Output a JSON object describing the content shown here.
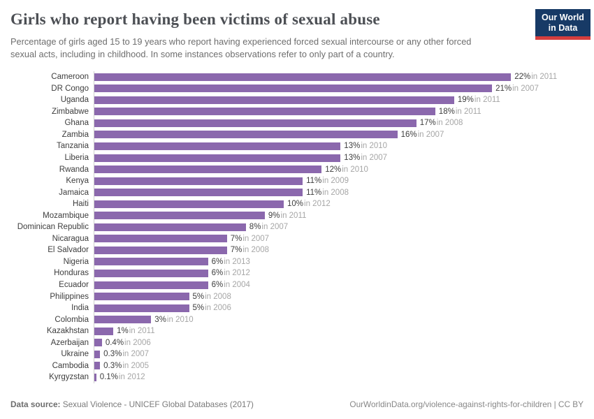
{
  "header": {
    "title": "Girls who report having been victims of sexual abuse",
    "subtitle": "Percentage of girls aged 15 to 19 years who report having experienced forced sexual intercourse or any other forced sexual acts, including in childhood. In some instances observations refer to only part of a country.",
    "logo": {
      "line1": "Our World",
      "line2": "in Data"
    }
  },
  "chart_data": {
    "type": "bar",
    "orientation": "horizontal",
    "value_unit": "%",
    "xlim": [
      0,
      22
    ],
    "grid": false,
    "legend": "none",
    "bar_color": "#8b68ad",
    "categories": [
      "Cameroon",
      "DR Congo",
      "Uganda",
      "Zimbabwe",
      "Ghana",
      "Zambia",
      "Tanzania",
      "Liberia",
      "Rwanda",
      "Kenya",
      "Jamaica",
      "Haiti",
      "Mozambique",
      "Dominican Republic",
      "Nicaragua",
      "El Salvador",
      "Nigeria",
      "Honduras",
      "Ecuador",
      "Philippines",
      "India",
      "Colombia",
      "Kazakhstan",
      "Azerbaijan",
      "Ukraine",
      "Cambodia",
      "Kyrgyzstan"
    ],
    "series": [
      {
        "country": "Cameroon",
        "value": 22,
        "value_label": "22%",
        "year": 2011,
        "year_label": "in 2011"
      },
      {
        "country": "DR Congo",
        "value": 21,
        "value_label": "21%",
        "year": 2007,
        "year_label": "in 2007"
      },
      {
        "country": "Uganda",
        "value": 19,
        "value_label": "19%",
        "year": 2011,
        "year_label": "in 2011"
      },
      {
        "country": "Zimbabwe",
        "value": 18,
        "value_label": "18%",
        "year": 2011,
        "year_label": "in 2011"
      },
      {
        "country": "Ghana",
        "value": 17,
        "value_label": "17%",
        "year": 2008,
        "year_label": "in 2008"
      },
      {
        "country": "Zambia",
        "value": 16,
        "value_label": "16%",
        "year": 2007,
        "year_label": "in 2007"
      },
      {
        "country": "Tanzania",
        "value": 13,
        "value_label": "13%",
        "year": 2010,
        "year_label": "in 2010"
      },
      {
        "country": "Liberia",
        "value": 13,
        "value_label": "13%",
        "year": 2007,
        "year_label": "in 2007"
      },
      {
        "country": "Rwanda",
        "value": 12,
        "value_label": "12%",
        "year": 2010,
        "year_label": "in 2010"
      },
      {
        "country": "Kenya",
        "value": 11,
        "value_label": "11%",
        "year": 2009,
        "year_label": "in 2009"
      },
      {
        "country": "Jamaica",
        "value": 11,
        "value_label": "11%",
        "year": 2008,
        "year_label": "in 2008"
      },
      {
        "country": "Haiti",
        "value": 10,
        "value_label": "10%",
        "year": 2012,
        "year_label": "in 2012"
      },
      {
        "country": "Mozambique",
        "value": 9,
        "value_label": "9%",
        "year": 2011,
        "year_label": "in 2011"
      },
      {
        "country": "Dominican Republic",
        "value": 8,
        "value_label": "8%",
        "year": 2007,
        "year_label": "in 2007"
      },
      {
        "country": "Nicaragua",
        "value": 7,
        "value_label": "7%",
        "year": 2007,
        "year_label": "in 2007"
      },
      {
        "country": "El Salvador",
        "value": 7,
        "value_label": "7%",
        "year": 2008,
        "year_label": "in 2008"
      },
      {
        "country": "Nigeria",
        "value": 6,
        "value_label": "6%",
        "year": 2013,
        "year_label": "in 2013"
      },
      {
        "country": "Honduras",
        "value": 6,
        "value_label": "6%",
        "year": 2012,
        "year_label": "in 2012"
      },
      {
        "country": "Ecuador",
        "value": 6,
        "value_label": "6%",
        "year": 2004,
        "year_label": "in 2004"
      },
      {
        "country": "Philippines",
        "value": 5,
        "value_label": "5%",
        "year": 2008,
        "year_label": "in 2008"
      },
      {
        "country": "India",
        "value": 5,
        "value_label": "5%",
        "year": 2006,
        "year_label": "in 2006"
      },
      {
        "country": "Colombia",
        "value": 3,
        "value_label": "3%",
        "year": 2010,
        "year_label": "in 2010"
      },
      {
        "country": "Kazakhstan",
        "value": 1,
        "value_label": "1%",
        "year": 2011,
        "year_label": "in 2011"
      },
      {
        "country": "Azerbaijan",
        "value": 0.4,
        "value_label": "0.4%",
        "year": 2006,
        "year_label": "in 2006"
      },
      {
        "country": "Ukraine",
        "value": 0.3,
        "value_label": "0.3%",
        "year": 2007,
        "year_label": "in 2007"
      },
      {
        "country": "Cambodia",
        "value": 0.3,
        "value_label": "0.3%",
        "year": 2005,
        "year_label": "in 2005"
      },
      {
        "country": "Kyrgyzstan",
        "value": 0.1,
        "value_label": "0.1%",
        "year": 2012,
        "year_label": "in 2012"
      }
    ]
  },
  "footer": {
    "source_prefix": "Data source:",
    "source_text": " Sexual Violence - UNICEF Global Databases (2017)",
    "right_text": "OurWorldinData.org/violence-against-rights-for-children | CC BY"
  },
  "colors": {
    "bar": "#8b68ad",
    "title": "#4c4f54",
    "subtitle": "#6e6e6e",
    "value_text": "#3d3d3d",
    "year_text": "#a6a6a6",
    "axis_line": "#cfcfcf",
    "logo_background": "#173a66",
    "logo_stripe": "#d43e3e"
  }
}
